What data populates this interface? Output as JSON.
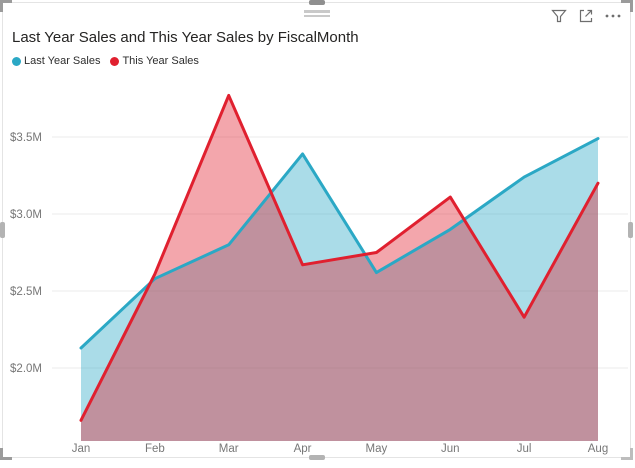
{
  "visual": {
    "title": "Last Year Sales and This Year Sales by FiscalMonth",
    "legend": [
      {
        "label": "Last Year Sales",
        "color": "#2ba8c5"
      },
      {
        "label": "This Year Sales",
        "color": "#e0202f"
      }
    ],
    "toolbar": {
      "icons": [
        "filter",
        "focus-mode",
        "more-options"
      ]
    }
  },
  "chart_data": {
    "type": "area",
    "title": "Last Year Sales and This Year Sales by FiscalMonth",
    "categories": [
      "Jan",
      "Feb",
      "Mar",
      "Apr",
      "May",
      "Jun",
      "Jul",
      "Aug"
    ],
    "series": [
      {
        "name": "Last Year Sales",
        "color": "#2ba8c5",
        "values": [
          2.13,
          2.58,
          2.8,
          3.39,
          2.62,
          2.9,
          3.24,
          3.49
        ]
      },
      {
        "name": "This Year Sales",
        "color": "#e0202f",
        "values": [
          1.66,
          2.61,
          3.77,
          2.67,
          2.75,
          3.11,
          2.33,
          3.2
        ]
      }
    ],
    "values_unit": "$M",
    "y_ticks": [
      {
        "label": "$2.0M",
        "value": 2.0
      },
      {
        "label": "$2.5M",
        "value": 2.5
      },
      {
        "label": "$3.0M",
        "value": 3.0
      },
      {
        "label": "$3.5M",
        "value": 3.5
      }
    ],
    "ylim": [
      1.53,
      3.84
    ],
    "xlabel": "",
    "ylabel": "",
    "grid": true,
    "legend_position": "top-left",
    "axis_color": "#777777",
    "gridline_color": "#ebebeb"
  }
}
